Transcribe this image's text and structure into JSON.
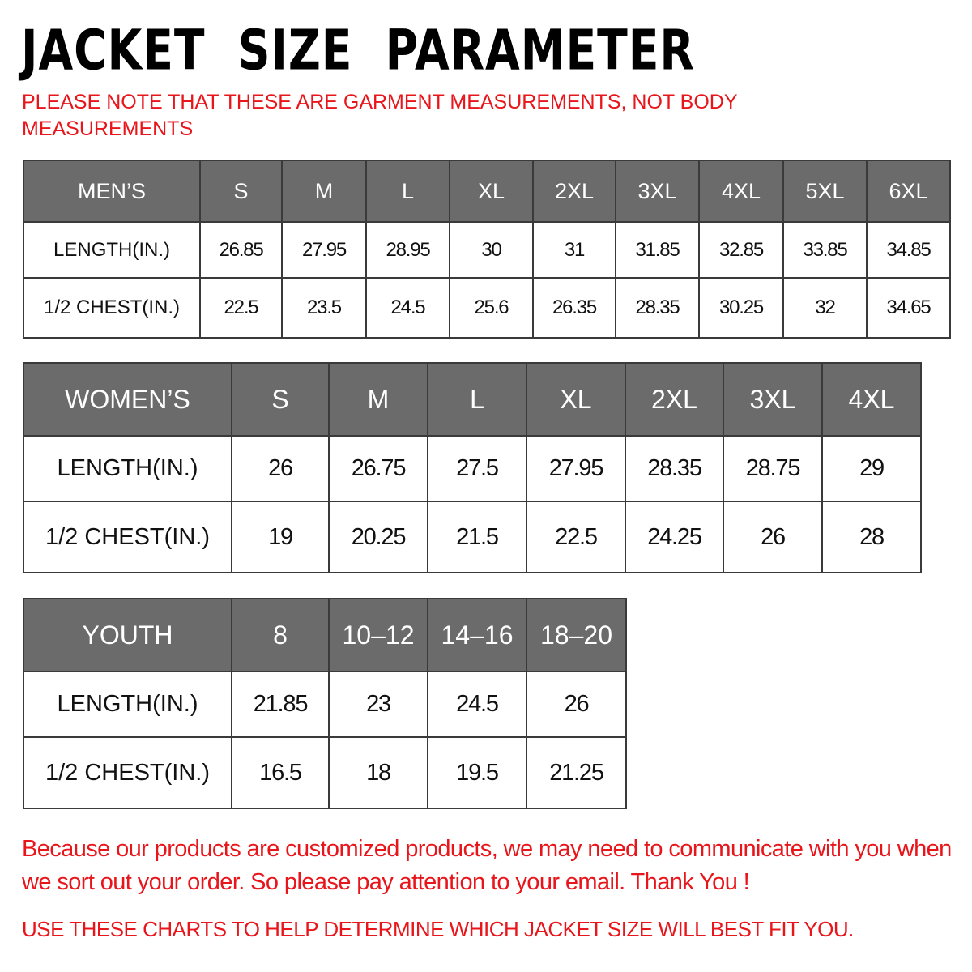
{
  "title": "JACKET  SIZE  PARAMETER",
  "subtitle": "PLEASE NOTE THAT THESE ARE GARMENT MEASUREMENTS, NOT BODY MEASUREMENTS",
  "tables": {
    "men": {
      "headers": [
        "MEN’S",
        "S",
        "M",
        "L",
        "XL",
        "2XL",
        "3XL",
        "4XL",
        "5XL",
        "6XL"
      ],
      "rows": [
        [
          "LENGTH(IN.)",
          "26.85",
          "27.95",
          "28.95",
          "30",
          "31",
          "31.85",
          "32.85",
          "33.85",
          "34.85"
        ],
        [
          "1/2 CHEST(IN.)",
          "22.5",
          "23.5",
          "24.5",
          "25.6",
          "26.35",
          "28.35",
          "30.25",
          "32",
          "34.65"
        ]
      ]
    },
    "women": {
      "headers": [
        "WOMEN’S",
        "S",
        "M",
        "L",
        "XL",
        "2XL",
        "3XL",
        "4XL"
      ],
      "rows": [
        [
          "LENGTH(IN.)",
          "26",
          "26.75",
          "27.5",
          "27.95",
          "28.35",
          "28.75",
          "29"
        ],
        [
          "1/2 CHEST(IN.)",
          "19",
          "20.25",
          "21.5",
          "22.5",
          "24.25",
          "26",
          "28"
        ]
      ]
    },
    "youth": {
      "headers": [
        "YOUTH",
        "8",
        "10–12",
        "14–16",
        "18–20"
      ],
      "rows": [
        [
          "LENGTH(IN.)",
          "21.85",
          "23",
          "24.5",
          "26"
        ],
        [
          "1/2 CHEST(IN.)",
          "16.5",
          "18",
          "19.5",
          "21.25"
        ]
      ]
    }
  },
  "footer": {
    "notice": "Because our products are customized products, we may need to communicate with you when we sort out your order. So please pay attention to your email. Thank You !",
    "advice": "USE THESE CHARTS TO HELP DETERMINE WHICH JACKET SIZE WILL BEST FIT YOU."
  },
  "colors": {
    "header_bg": "#6b6b6b",
    "accent_red": "#e8151b"
  }
}
